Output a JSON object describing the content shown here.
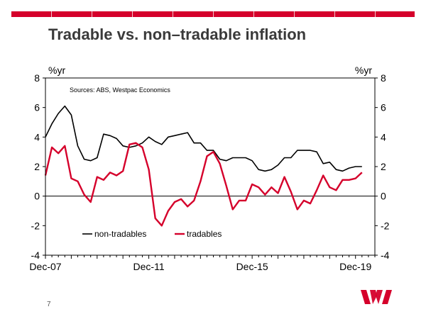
{
  "slide": {
    "title": "Tradable vs. non–tradable inflation",
    "page_number": "7",
    "brand_color": "#d5002b"
  },
  "chart_data": {
    "type": "line",
    "title": "Tradable vs. non–tradable inflation",
    "source_note": "Sources: ABS, Westpac Economics",
    "left_unit": "%yr",
    "right_unit": "%yr",
    "ylim": [
      -4,
      8
    ],
    "yticks": [
      -4,
      -2,
      0,
      2,
      4,
      6,
      8
    ],
    "xlim": [
      2007.75,
      2020.5
    ],
    "xticks": [
      {
        "label": "Dec-07",
        "x": 2007.75
      },
      {
        "label": "Dec-11",
        "x": 2011.75
      },
      {
        "label": "Dec-15",
        "x": 2015.75
      },
      {
        "label": "Dec-19",
        "x": 2019.75
      }
    ],
    "legend": {
      "placement": "bottom-left"
    },
    "series": [
      {
        "name": "non-tradables",
        "color": "#000000",
        "x": [
          2007.75,
          2008.0,
          2008.25,
          2008.5,
          2008.75,
          2009.0,
          2009.25,
          2009.5,
          2009.75,
          2010.0,
          2010.25,
          2010.5,
          2010.75,
          2011.0,
          2011.25,
          2011.5,
          2011.75,
          2012.0,
          2012.25,
          2012.5,
          2012.75,
          2013.0,
          2013.25,
          2013.5,
          2013.75,
          2014.0,
          2014.25,
          2014.5,
          2014.75,
          2015.0,
          2015.25,
          2015.5,
          2015.75,
          2016.0,
          2016.25,
          2016.5,
          2016.75,
          2017.0,
          2017.25,
          2017.5,
          2017.75,
          2018.0,
          2018.25,
          2018.5,
          2018.75,
          2019.0,
          2019.25,
          2019.5,
          2019.75,
          2020.0
        ],
        "values": [
          4.0,
          4.9,
          5.6,
          6.1,
          5.5,
          3.4,
          2.5,
          2.4,
          2.6,
          4.2,
          4.1,
          3.9,
          3.4,
          3.3,
          3.4,
          3.6,
          4.0,
          3.7,
          3.5,
          4.0,
          4.1,
          4.2,
          4.3,
          3.6,
          3.6,
          3.1,
          3.1,
          2.5,
          2.4,
          2.6,
          2.6,
          2.6,
          2.4,
          1.8,
          1.7,
          1.8,
          2.1,
          2.6,
          2.6,
          3.1,
          3.1,
          3.1,
          3.0,
          2.2,
          2.3,
          1.8,
          1.7,
          1.9,
          2.0,
          2.0
        ]
      },
      {
        "name": "tradables",
        "color": "#d5002b",
        "x": [
          2007.75,
          2008.0,
          2008.25,
          2008.5,
          2008.75,
          2009.0,
          2009.25,
          2009.5,
          2009.75,
          2010.0,
          2010.25,
          2010.5,
          2010.75,
          2011.0,
          2011.25,
          2011.5,
          2011.75,
          2012.0,
          2012.25,
          2012.5,
          2012.75,
          2013.0,
          2013.25,
          2013.5,
          2013.75,
          2014.0,
          2014.25,
          2014.5,
          2014.75,
          2015.0,
          2015.25,
          2015.5,
          2015.75,
          2016.0,
          2016.25,
          2016.5,
          2016.75,
          2017.0,
          2017.25,
          2017.5,
          2017.75,
          2018.0,
          2018.25,
          2018.5,
          2018.75,
          2019.0,
          2019.25,
          2019.5,
          2019.75,
          2020.0
        ],
        "values": [
          1.4,
          3.3,
          2.9,
          3.4,
          1.2,
          1.0,
          0.1,
          -0.4,
          1.3,
          1.1,
          1.6,
          1.4,
          1.7,
          3.5,
          3.6,
          3.3,
          1.8,
          -1.5,
          -2.0,
          -1.0,
          -0.4,
          -0.2,
          -0.7,
          -0.3,
          1.0,
          2.7,
          3.0,
          2.2,
          0.7,
          -0.9,
          -0.3,
          -0.3,
          0.8,
          0.6,
          0.1,
          0.6,
          0.2,
          1.3,
          0.3,
          -0.9,
          -0.3,
          -0.5,
          0.4,
          1.4,
          0.6,
          0.4,
          1.1,
          1.1,
          1.2,
          1.6
        ]
      }
    ]
  }
}
